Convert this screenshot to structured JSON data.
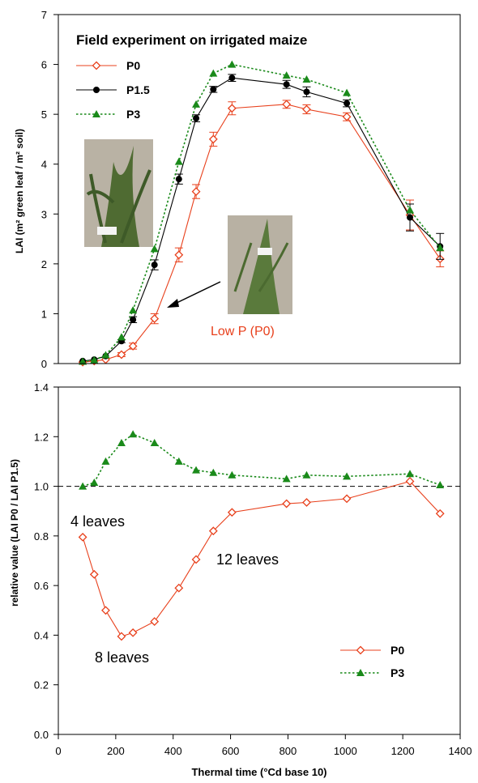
{
  "colors": {
    "p0": "#e8401c",
    "p15": "#000000",
    "p3": "#1a8a1a"
  },
  "chart_data": [
    {
      "type": "line",
      "title": "Field experiment on irrigated maize",
      "ylabel": "LAI (m² green leaf / m² soil)",
      "xlabel": "",
      "xlim": [
        0,
        1400
      ],
      "ylim": [
        0,
        7
      ],
      "yticks": [
        "0",
        "1",
        "2",
        "3",
        "4",
        "5",
        "6",
        "7"
      ],
      "annotation": "Low P (P0)",
      "series": [
        {
          "name": "P0",
          "marker": "diamond-open",
          "style": "solid",
          "x": [
            85,
            125,
            165,
            220,
            260,
            335,
            420,
            480,
            540,
            605,
            795,
            865,
            1005,
            1225,
            1330
          ],
          "y": [
            0.03,
            0.05,
            0.08,
            0.18,
            0.35,
            0.9,
            2.18,
            3.45,
            4.5,
            5.12,
            5.2,
            5.1,
            4.95,
            2.98,
            2.1
          ],
          "err": [
            0,
            0,
            0,
            0.04,
            0.06,
            0.1,
            0.14,
            0.14,
            0.14,
            0.13,
            0.08,
            0.09,
            0.08,
            0.3,
            0.16
          ]
        },
        {
          "name": "P1.5",
          "marker": "circle-filled",
          "style": "solid",
          "x": [
            85,
            125,
            165,
            220,
            260,
            335,
            420,
            480,
            540,
            605,
            795,
            865,
            1005,
            1225,
            1330
          ],
          "y": [
            0.05,
            0.08,
            0.15,
            0.45,
            0.88,
            1.98,
            3.7,
            4.92,
            5.5,
            5.73,
            5.6,
            5.45,
            5.22,
            2.93,
            2.35
          ],
          "err": [
            0,
            0,
            0,
            0.03,
            0.06,
            0.1,
            0.1,
            0.07,
            0.06,
            0.07,
            0.08,
            0.1,
            0.07,
            0.27,
            0.26
          ]
        },
        {
          "name": "P3",
          "marker": "triangle-filled",
          "style": "dotted",
          "x": [
            85,
            125,
            165,
            220,
            260,
            335,
            420,
            480,
            540,
            605,
            795,
            865,
            1005,
            1225,
            1330
          ],
          "y": [
            0.04,
            0.07,
            0.17,
            0.53,
            1.07,
            2.3,
            4.05,
            5.2,
            5.82,
            6.0,
            5.78,
            5.7,
            5.43,
            3.08,
            2.32
          ],
          "err": []
        }
      ]
    },
    {
      "type": "line",
      "title": "",
      "ylabel": "relative value (LAI P0 / LAI P1.5)",
      "xlabel": "Thermal time (°Cd base 10)",
      "xlim": [
        0,
        1400
      ],
      "ylim": [
        0,
        1.4
      ],
      "xticks": [
        "0",
        "200",
        "400",
        "600",
        "800",
        "1000",
        "1200",
        "1400"
      ],
      "yticks": [
        "0.0",
        "0.2",
        "0.4",
        "0.6",
        "0.8",
        "1.0",
        "1.2",
        "1.4"
      ],
      "reference_line": 1.0,
      "annotations": [
        "4 leaves",
        "12 leaves",
        "8 leaves"
      ],
      "series": [
        {
          "name": "P0",
          "marker": "diamond-open",
          "style": "solid",
          "x": [
            85,
            125,
            165,
            220,
            260,
            335,
            420,
            480,
            540,
            605,
            795,
            865,
            1005,
            1225,
            1330
          ],
          "y": [
            0.795,
            0.645,
            0.5,
            0.395,
            0.41,
            0.455,
            0.59,
            0.705,
            0.82,
            0.895,
            0.93,
            0.935,
            0.95,
            1.02,
            0.89
          ]
        },
        {
          "name": "P3",
          "marker": "triangle-filled",
          "style": "dotted",
          "x": [
            85,
            125,
            165,
            220,
            260,
            335,
            420,
            480,
            540,
            605,
            795,
            865,
            1005,
            1225,
            1330
          ],
          "y": [
            1.0,
            1.015,
            1.1,
            1.175,
            1.21,
            1.175,
            1.1,
            1.065,
            1.055,
            1.045,
            1.03,
            1.045,
            1.04,
            1.05,
            1.005
          ]
        }
      ]
    }
  ]
}
